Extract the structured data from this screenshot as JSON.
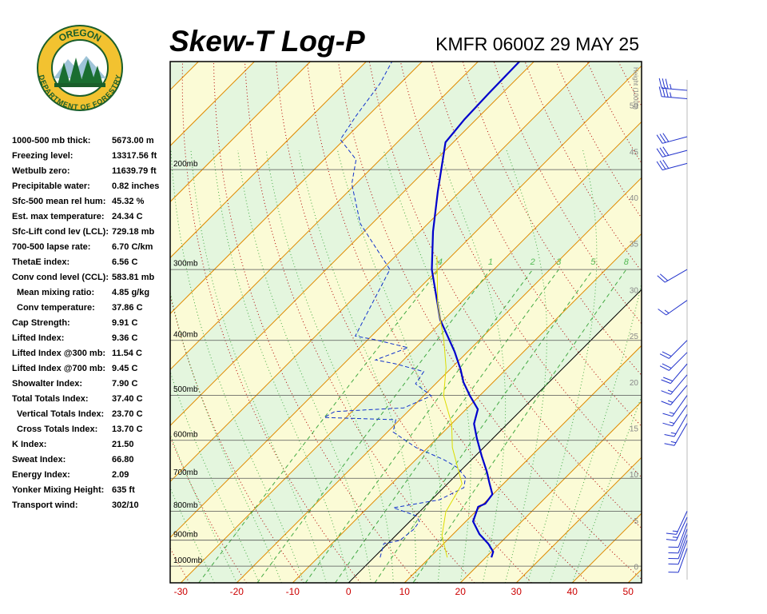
{
  "logo": {
    "top": "OREGON",
    "bottom": "DEPARTMENT OF FORESTRY"
  },
  "stats": [
    {
      "label": "1000-500 mb thick:",
      "value": "5673.00 m"
    },
    {
      "label": "Freezing level:",
      "value": "13317.56 ft"
    },
    {
      "label": "Wetbulb zero:",
      "value": "11639.79 ft"
    },
    {
      "label": "Precipitable water:",
      "value": "0.82 inches"
    },
    {
      "label": "Sfc-500 mean rel hum:",
      "value": "45.32 %"
    },
    {
      "label": "Est. max temperature:",
      "value": "24.34 C"
    },
    {
      "label": "Sfc-Lift cond lev (LCL):",
      "value": "729.18 mb"
    },
    {
      "label": "700-500 lapse rate:",
      "value": "6.70 C/km"
    },
    {
      "label": "ThetaE index:",
      "value": "6.56 C"
    },
    {
      "label": "Conv cond level (CCL):",
      "value": "583.81 mb",
      "children": [
        {
          "label": "Mean mixing ratio:",
          "value": "4.85 g/kg"
        },
        {
          "label": "Conv temperature:",
          "value": "37.86 C"
        }
      ]
    },
    {
      "label": "Cap Strength:",
      "value": "9.91 C"
    },
    {
      "label": "Lifted Index:",
      "value": "9.36 C"
    },
    {
      "label": "Lifted Index @300 mb:",
      "value": "11.54 C"
    },
    {
      "label": "Lifted Index @700 mb:",
      "value": "9.45 C"
    },
    {
      "label": "Showalter Index:",
      "value": "7.90 C"
    },
    {
      "label": "Total Totals Index:",
      "value": "37.40 C",
      "children": [
        {
          "label": "Vertical Totals Index:",
          "value": "23.70 C"
        },
        {
          "label": "Cross Totals Index:",
          "value": "13.70 C"
        }
      ]
    },
    {
      "label": "K Index:",
      "value": "21.50"
    },
    {
      "label": "Sweat Index:",
      "value": "66.80"
    },
    {
      "label": "Energy Index:",
      "value": "2.09"
    },
    {
      "label": "Yonker Mixing Height:",
      "value": "635 ft"
    },
    {
      "label": "Transport wind:",
      "value": "302/10"
    }
  ],
  "chart_data": {
    "type": "skewt",
    "title": "Skew-T Log-P",
    "subtitle": "KMFR 0600Z 29 MAY 25",
    "xlim": [
      -31.9,
      52.4
    ],
    "xticks": [
      -30,
      -20,
      -10,
      0,
      10,
      20,
      30,
      40,
      50
    ],
    "ylim": [
      1070,
      129
    ],
    "log_y": true,
    "yticks": [
      {
        "value": 1000,
        "label": "1000mb"
      },
      {
        "value": 900,
        "label": "900mb"
      },
      {
        "value": 800,
        "label": "800mb"
      },
      {
        "value": 700,
        "label": "700mb"
      },
      {
        "value": 600,
        "label": "600mb"
      },
      {
        "value": 500,
        "label": "500mb"
      },
      {
        "value": 400,
        "label": "400mb"
      },
      {
        "value": 300,
        "label": "300mb"
      },
      {
        "value": 200,
        "label": "200mb"
      }
    ],
    "y2label": "Height (1000ft)",
    "y2lim": [
      -1.65,
      54.85
    ],
    "y2ticks": [
      0,
      5,
      10,
      15,
      20,
      25,
      30,
      35,
      40,
      45,
      50
    ],
    "mixing_ratio": [
      {
        "value": 0.4,
        "label": ".4"
      },
      1,
      2,
      3,
      5,
      8
    ],
    "series": [
      {
        "color": "#0000cc",
        "dashed": false,
        "pressure": [
          965,
          943,
          913,
          878,
          834,
          786,
          776,
          747,
          713,
          682,
          639,
          595,
          561,
          529,
          501,
          474,
          450,
          419,
          393,
          368,
          300,
          257,
          219,
          179,
          163,
          147,
          129
        ],
        "values": [
          21.0,
          20.3,
          18.0,
          14.7,
          11.3,
          9.6,
          10.3,
          9.9,
          7.3,
          4.9,
          1.1,
          -2.9,
          -6.0,
          -7.9,
          -11.7,
          -15.3,
          -18.1,
          -22.3,
          -26.4,
          -30.6,
          -41.1,
          -47.7,
          -53.9,
          -61.4,
          -62.1,
          -62.4,
          -62.6
        ]
      },
      {
        "color": "#1133cc",
        "dashed": true,
        "pressure": [
          965,
          913,
          901,
          861,
          834,
          815,
          789,
          764,
          727,
          698,
          671,
          649,
          618,
          580,
          552,
          547,
          534,
          526,
          501,
          477,
          454,
          440,
          433,
          412,
          399,
          393,
          356,
          300,
          249,
          212,
          192,
          177,
          161,
          141,
          129
        ],
        "values": [
          1.1,
          -0.7,
          1.6,
          2.1,
          1.7,
          0.1,
          -5.4,
          1.4,
          3.6,
          2.1,
          -1.0,
          -5.0,
          -12.1,
          -19.0,
          -20.7,
          -33.9,
          -33.1,
          -21.4,
          -18.6,
          -23.6,
          -24.3,
          -30.7,
          -35.0,
          -31.4,
          -38.6,
          -42.9,
          -45.0,
          -48.6,
          -62.1,
          -70.7,
          -74.3,
          -80.7,
          -82.1,
          -83.6,
          -85.4
        ]
      },
      {
        "color": "#dddd00",
        "dashed": false,
        "pressure": [
          965,
          884,
          802,
          716,
          618,
          561,
          501,
          447,
          399,
          345,
          284
        ],
        "values": [
          13.1,
          8.3,
          4.7,
          2.6,
          -5.6,
          -10.0,
          -16.4,
          -21.0,
          -26.4,
          -33.9,
          -42.6
        ]
      }
    ],
    "wind": {
      "pressure": [
        145,
        150,
        175,
        185,
        195,
        300,
        340,
        400,
        420,
        440,
        460,
        480,
        500,
        520,
        540,
        560,
        800,
        820,
        840,
        860,
        880,
        900,
        930
      ],
      "direction": [
        275,
        275,
        255,
        255,
        255,
        240,
        235,
        225,
        225,
        220,
        220,
        220,
        215,
        215,
        210,
        210,
        205,
        205,
        200,
        200,
        200,
        200,
        200
      ],
      "speed": [
        35,
        35,
        30,
        30,
        30,
        20,
        15,
        20,
        20,
        20,
        15,
        15,
        15,
        15,
        15,
        15,
        15,
        15,
        10,
        10,
        10,
        10,
        10
      ]
    }
  }
}
